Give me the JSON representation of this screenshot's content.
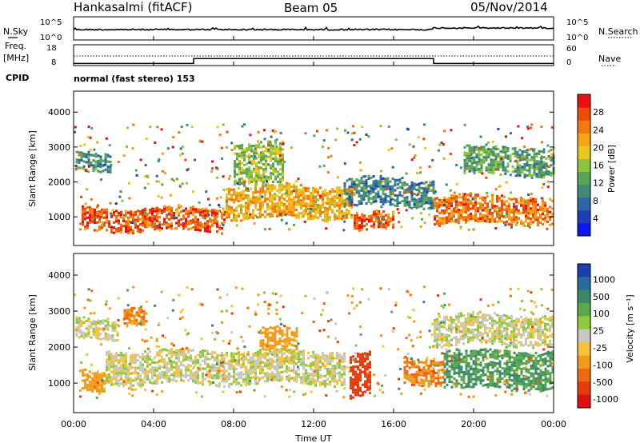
{
  "header": {
    "station": "Hankasalmi (fitACF)",
    "beam": "Beam 05",
    "date": "05/Nov/2014"
  },
  "panel_labels": {
    "nsky": "N.Sky",
    "nsearch": "N.Search",
    "freq": "Freq.",
    "freq_unit": "[MHz]",
    "nave": "Nave",
    "cpid": "CPID",
    "mode": "normal (fast stereo) 153"
  },
  "axis_labels": {
    "slant_range": "Slant Range [km]",
    "time": "Time UT",
    "power": "Power [dB]",
    "velocity": "Velocity [m s⁻¹]"
  },
  "chart_data": {
    "type": "heatmap",
    "x_axis": {
      "label": "Time UT",
      "ticks": [
        "00:00",
        "04:00",
        "08:00",
        "12:00",
        "16:00",
        "20:00",
        "00:00"
      ],
      "range_hours": [
        0,
        24
      ]
    },
    "range_axis": {
      "label": "Slant Range [km]",
      "ticks": [
        1000,
        2000,
        3000,
        4000
      ],
      "range_km": [
        180,
        4600
      ]
    },
    "noise_panel": {
      "left_ticks": [
        "10^5",
        "10^0"
      ],
      "right_ticks": [
        "10^5",
        "10^0"
      ]
    },
    "freq_panel": {
      "left_ticks": [
        18,
        8
      ],
      "right_ticks": [
        60,
        0
      ],
      "freq_mhz_level": 12.6,
      "nave_segments": [
        {
          "start_h": 0.0,
          "end_h": 6.0,
          "level": 6
        },
        {
          "start_h": 6.0,
          "end_h": 18.0,
          "level": 20
        },
        {
          "start_h": 18.0,
          "end_h": 24.0,
          "level": 6
        }
      ]
    },
    "power_colorbar": {
      "label": "Power [dB]",
      "ticks": [
        4,
        8,
        12,
        16,
        20,
        24,
        28
      ],
      "range": [
        0,
        32
      ],
      "colors": [
        "#0a17ee",
        "#1f3fb8",
        "#2f66a8",
        "#3f8a76",
        "#58a55a",
        "#8cc43c",
        "#e6c81e",
        "#f6a414",
        "#f47a0c",
        "#ec4a08",
        "#e81010"
      ]
    },
    "velocity_colorbar": {
      "label": "Velocity [m s⁻¹]",
      "ticks": [
        1000,
        500,
        100,
        25,
        -25,
        -100,
        -500,
        -1000
      ],
      "colors": [
        "#1c3fb0",
        "#2a6a9c",
        "#3a8a6a",
        "#5aa84a",
        "#8ecb3c",
        "#c8c8c0",
        "#f6c23a",
        "#f49a1a",
        "#ef6a0e",
        "#e83a0a",
        "#e01010"
      ]
    },
    "power_features": [
      {
        "t0": 0.4,
        "t1": 7.5,
        "r0": 650,
        "r1": 1250,
        "value": 28
      },
      {
        "t0": 0.1,
        "t1": 1.8,
        "r0": 2300,
        "r1": 2800,
        "value": 10
      },
      {
        "t0": 7.6,
        "t1": 13.9,
        "r0": 1000,
        "r1": 1900,
        "value": 22
      },
      {
        "t0": 8.0,
        "t1": 10.5,
        "r0": 2000,
        "r1": 3100,
        "value": 16
      },
      {
        "t0": 14.0,
        "t1": 16.0,
        "r0": 650,
        "r1": 1100,
        "value": 28
      },
      {
        "t0": 13.5,
        "t1": 18.0,
        "r0": 1300,
        "r1": 2100,
        "value": 9
      },
      {
        "t0": 18.0,
        "t1": 24.0,
        "r0": 800,
        "r1": 1600,
        "value": 26
      },
      {
        "t0": 19.5,
        "t1": 24.0,
        "r0": 2200,
        "r1": 3000,
        "value": 12
      }
    ],
    "velocity_features": [
      {
        "t0": 0.1,
        "t1": 2.2,
        "r0": 2200,
        "r1": 2750,
        "value": 0
      },
      {
        "t0": 0.4,
        "t1": 1.6,
        "r0": 800,
        "r1": 1300,
        "value": -150
      },
      {
        "t0": 1.6,
        "t1": 13.5,
        "r0": 1000,
        "r1": 1900,
        "value": 0
      },
      {
        "t0": 2.5,
        "t1": 3.6,
        "r0": 2700,
        "r1": 3150,
        "value": -250
      },
      {
        "t0": 9.3,
        "t1": 11.2,
        "r0": 1900,
        "r1": 2500,
        "value": -150
      },
      {
        "t0": 13.8,
        "t1": 14.8,
        "r0": 600,
        "r1": 1800,
        "value": -600
      },
      {
        "t0": 16.5,
        "t1": 18.5,
        "r0": 1000,
        "r1": 1700,
        "value": -250
      },
      {
        "t0": 18.5,
        "t1": 24.0,
        "r0": 900,
        "r1": 1900,
        "value": 250
      },
      {
        "t0": 18.0,
        "t1": 24.0,
        "r0": 2100,
        "r1": 2900,
        "value": 0
      }
    ]
  }
}
